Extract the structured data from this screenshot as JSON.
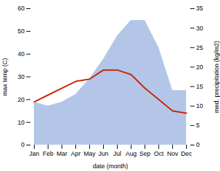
{
  "chart_data": {
    "type": "line",
    "xlabel": "date (month)",
    "ylabel": "max temp (C)",
    "y2label": "med. precipitation (kg/m2)",
    "categories": [
      "Jan",
      "Feb",
      "Mar",
      "Apr",
      "May",
      "Jun",
      "Jul",
      "Aug",
      "Sep",
      "Oct",
      "Nov",
      "Dec"
    ],
    "series": [
      {
        "type": "area",
        "axis": "y2",
        "color": "#b3c6e8",
        "values": [
          11,
          10,
          11,
          13,
          17,
          22,
          28,
          32,
          32,
          25,
          14,
          14
        ]
      },
      {
        "type": "line",
        "color": "#cc2200",
        "values": [
          19,
          22,
          25,
          28,
          29,
          33,
          33,
          31,
          25,
          20,
          15,
          14
        ]
      }
    ],
    "ylim": [
      0,
      60
    ],
    "yticks": [
      0,
      10,
      20,
      30,
      40,
      50,
      60
    ],
    "y2lim": [
      0,
      35
    ],
    "y2ticks": [
      0,
      5,
      10,
      15,
      20,
      25,
      30,
      35
    ]
  }
}
